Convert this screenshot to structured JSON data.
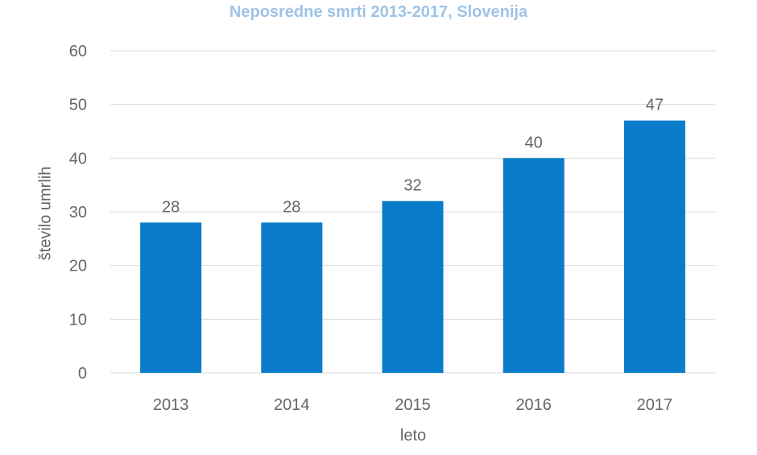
{
  "chart_data": {
    "type": "bar",
    "title": "Neposredne smrti 2013-2017, Slovenija",
    "xlabel": "leto",
    "ylabel": "število umrlih",
    "categories": [
      "2013",
      "2014",
      "2015",
      "2016",
      "2017"
    ],
    "values": [
      28,
      28,
      32,
      40,
      47
    ],
    "data_labels": [
      "28",
      "28",
      "32",
      "40",
      "47"
    ],
    "y_ticks": [
      "0",
      "10",
      "20",
      "30",
      "40",
      "50",
      "60"
    ],
    "ylim": [
      0,
      60
    ],
    "grid": true,
    "legend": "none",
    "colors": {
      "bar": "#0a7cc9",
      "title": "#9dc3e6",
      "text": "#666666",
      "grid": "#d9d9d9"
    }
  }
}
